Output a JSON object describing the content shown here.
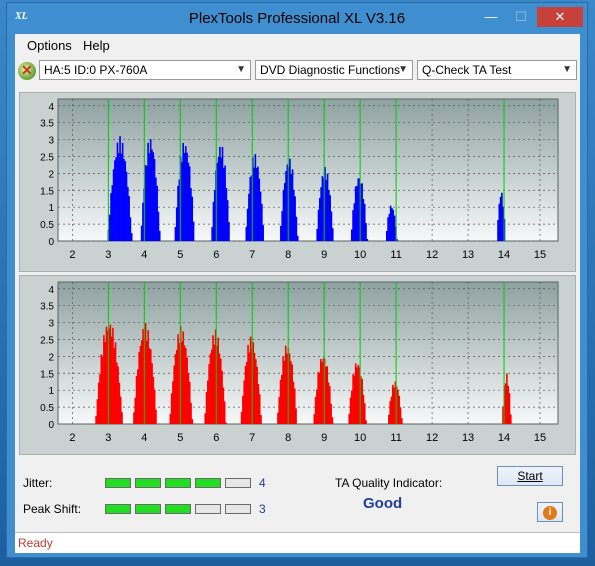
{
  "window": {
    "title": "PlexTools Professional XL V3.16",
    "minimize": "—",
    "maximize": "☐",
    "close": "✕"
  },
  "menu": [
    "Options",
    "Help"
  ],
  "toolbar": {
    "device": "HA:5 ID:0  PX-760A",
    "function": "DVD Diagnostic Functions",
    "test": "Q-Check TA Test"
  },
  "bottom": {
    "jitter_label": "Jitter:",
    "jitter_value": "4",
    "jitter_level": 4,
    "peak_label": "Peak Shift:",
    "peak_value": "3",
    "peak_level": 3,
    "max_level": 5,
    "ta_label": "TA Quality Indicator:",
    "ta_value": "Good",
    "start_label": "Start",
    "info_icon": "info-icon"
  },
  "status": "Ready",
  "colors": {
    "top_series": "#0000ff",
    "bottom_series": "#ff0000",
    "marker": "#00d000",
    "level_on": "#22dd22",
    "level_off": "#e6e6e6"
  },
  "chart_data": [
    {
      "type": "area",
      "title": "",
      "xlabel": "",
      "ylabel": "",
      "xlim": [
        1.6,
        15.5
      ],
      "ylim": [
        0,
        4.2
      ],
      "x_ticks": [
        "2",
        "3",
        "4",
        "5",
        "6",
        "7",
        "8",
        "9",
        "10",
        "11",
        "12",
        "13",
        "14",
        "15"
      ],
      "y_ticks": [
        "0",
        "0.5",
        "1",
        "1.5",
        "2",
        "2.5",
        "3",
        "3.5",
        "4"
      ],
      "grid": true,
      "markers_x": [
        3,
        4,
        5,
        6,
        7,
        8,
        9,
        10,
        11,
        14
      ],
      "series": [
        {
          "peaks": [
            {
              "center": 3.3,
              "height": 3.1,
              "width": 0.34
            },
            {
              "center": 4.15,
              "height": 3.1,
              "width": 0.27
            },
            {
              "center": 5.1,
              "height": 3.0,
              "width": 0.28
            },
            {
              "center": 6.1,
              "height": 2.9,
              "width": 0.26
            },
            {
              "center": 7.05,
              "height": 2.6,
              "width": 0.26
            },
            {
              "center": 8.0,
              "height": 2.5,
              "width": 0.25
            },
            {
              "center": 9.0,
              "height": 2.2,
              "width": 0.24
            },
            {
              "center": 9.95,
              "height": 2.0,
              "width": 0.23
            },
            {
              "center": 10.85,
              "height": 1.1,
              "width": 0.16
            },
            {
              "center": 13.9,
              "height": 1.5,
              "width": 0.12
            }
          ]
        }
      ]
    },
    {
      "type": "area",
      "title": "",
      "xlabel": "",
      "ylabel": "",
      "xlim": [
        1.6,
        15.5
      ],
      "ylim": [
        0,
        4.2
      ],
      "x_ticks": [
        "2",
        "3",
        "4",
        "5",
        "6",
        "7",
        "8",
        "9",
        "10",
        "11",
        "12",
        "13",
        "14",
        "15"
      ],
      "y_ticks": [
        "0",
        "0.5",
        "1",
        "1.5",
        "2",
        "2.5",
        "3",
        "3.5",
        "4"
      ],
      "grid": true,
      "markers_x": [
        3,
        4,
        5,
        6,
        7,
        8,
        9,
        10,
        11,
        14
      ],
      "series": [
        {
          "peaks": [
            {
              "center": 3.0,
              "height": 3.1,
              "width": 0.38
            },
            {
              "center": 4.0,
              "height": 3.0,
              "width": 0.33
            },
            {
              "center": 5.0,
              "height": 2.9,
              "width": 0.32
            },
            {
              "center": 5.95,
              "height": 2.8,
              "width": 0.3
            },
            {
              "center": 6.95,
              "height": 2.6,
              "width": 0.29
            },
            {
              "center": 7.95,
              "height": 2.4,
              "width": 0.28
            },
            {
              "center": 8.95,
              "height": 2.1,
              "width": 0.27
            },
            {
              "center": 9.9,
              "height": 1.9,
              "width": 0.25
            },
            {
              "center": 10.95,
              "height": 1.3,
              "width": 0.2
            },
            {
              "center": 14.05,
              "height": 1.5,
              "width": 0.13
            }
          ]
        }
      ]
    }
  ]
}
